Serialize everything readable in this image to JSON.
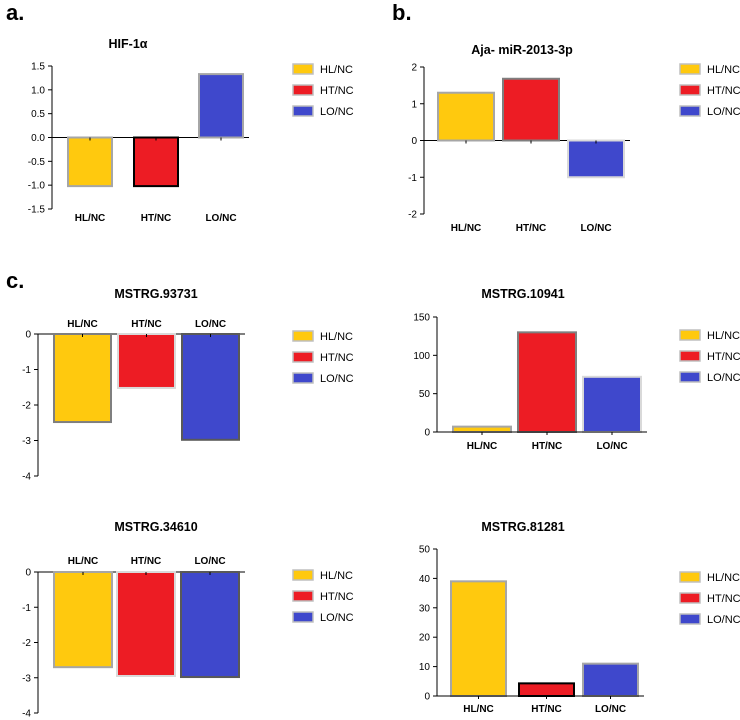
{
  "panel_labels": [
    "a.",
    "b.",
    "c."
  ],
  "chart_data": [
    {
      "type": "bar",
      "title": "HIF-1α",
      "categories": [
        "HL/NC",
        "HT/NC",
        "LO/NC"
      ],
      "values": [
        -1.02,
        -1.02,
        1.33
      ],
      "ylim": [
        -1.5,
        1.5
      ],
      "yticks": [
        "1.5",
        "1.0",
        "0.5",
        "0.0",
        "-0.5",
        "-1.0",
        "-1.5"
      ],
      "xlabel": "",
      "ylabel": "",
      "category_labels_position": "bottom",
      "bar_colors": [
        "#FFC90E",
        "#ED1C24",
        "#3F48CC"
      ],
      "bar_borders": [
        "#A6A6A6",
        "#000000",
        "#A6A6A6"
      ],
      "legend": [
        "HL/NC",
        "HT/NC",
        "LO/NC"
      ],
      "legend_position": "right",
      "grid": false
    },
    {
      "type": "bar",
      "title": "Aja- miR-2013-3p",
      "categories": [
        "HL/NC",
        "HT/NC",
        "LO/NC"
      ],
      "values": [
        1.3,
        1.68,
        -1.0
      ],
      "ylim": [
        -2,
        2
      ],
      "yticks": [
        "2",
        "1",
        "0",
        "-1",
        "-2"
      ],
      "xlabel": "",
      "ylabel": "",
      "category_labels_position": "bottom",
      "bar_colors": [
        "#FFC90E",
        "#ED1C24",
        "#3F48CC"
      ],
      "bar_borders": [
        "#A6A6A6",
        "#7F7F7F",
        "#D9D9D9"
      ],
      "legend": [
        "HL/NC",
        "HT/NC",
        "LO/NC"
      ],
      "legend_position": "right",
      "grid": false
    },
    {
      "type": "bar",
      "title": "MSTRG.93731",
      "categories": [
        "HL/NC",
        "HT/NC",
        "LO/NC"
      ],
      "values": [
        -2.48,
        -1.52,
        -2.98
      ],
      "ylim": [
        -4,
        0
      ],
      "yticks": [
        "0",
        "-1",
        "-2",
        "-3",
        "-4"
      ],
      "xlabel": "",
      "ylabel": "",
      "category_labels_position": "top",
      "bar_colors": [
        "#FFC90E",
        "#ED1C24",
        "#3F48CC"
      ],
      "bar_borders": [
        "#7F7F7F",
        "#D9D9D9",
        "#595959"
      ],
      "legend": [
        "HL/NC",
        "HT/NC",
        "LO/NC"
      ],
      "legend_position": "right",
      "grid": false
    },
    {
      "type": "bar",
      "title": "MSTRG.10941",
      "categories": [
        "HL/NC",
        "HT/NC",
        "LO/NC"
      ],
      "values": [
        7,
        130,
        72
      ],
      "ylim": [
        0,
        150
      ],
      "yticks": [
        "150",
        "100",
        "50",
        "0"
      ],
      "xlabel": "",
      "ylabel": "",
      "category_labels_position": "bottom",
      "bar_colors": [
        "#FFC90E",
        "#ED1C24",
        "#3F48CC"
      ],
      "bar_borders": [
        "#A6A6A6",
        "#7F7F7F",
        "#D9D9D9"
      ],
      "legend": [
        "HL/NC",
        "HT/NC",
        "LO/NC"
      ],
      "legend_position": "right",
      "grid": false
    },
    {
      "type": "bar",
      "title": "MSTRG.34610",
      "categories": [
        "HL/NC",
        "HT/NC",
        "LO/NC"
      ],
      "values": [
        -2.7,
        -2.95,
        -2.98
      ],
      "ylim": [
        -4,
        0
      ],
      "yticks": [
        "0",
        "-1",
        "-2",
        "-3",
        "-4"
      ],
      "xlabel": "",
      "ylabel": "",
      "category_labels_position": "top",
      "bar_colors": [
        "#FFC90E",
        "#ED1C24",
        "#3F48CC"
      ],
      "bar_borders": [
        "#A6A6A6",
        "#D9D9D9",
        "#595959"
      ],
      "legend": [
        "HL/NC",
        "HT/NC",
        "LO/NC"
      ],
      "legend_position": "right",
      "grid": false
    },
    {
      "type": "bar",
      "title": "MSTRG.81281",
      "categories": [
        "HL/NC",
        "HT/NC",
        "LO/NC"
      ],
      "values": [
        39,
        4.3,
        11
      ],
      "ylim": [
        0,
        50
      ],
      "yticks": [
        "50",
        "40",
        "30",
        "20",
        "10",
        "0"
      ],
      "xlabel": "",
      "ylabel": "",
      "category_labels_position": "bottom",
      "bar_colors": [
        "#FFC90E",
        "#ED1C24",
        "#3F48CC"
      ],
      "bar_borders": [
        "#A6A6A6",
        "#000000",
        "#A6A6A6"
      ],
      "legend": [
        "HL/NC",
        "HT/NC",
        "LO/NC"
      ],
      "legend_position": "right",
      "grid": false
    }
  ]
}
